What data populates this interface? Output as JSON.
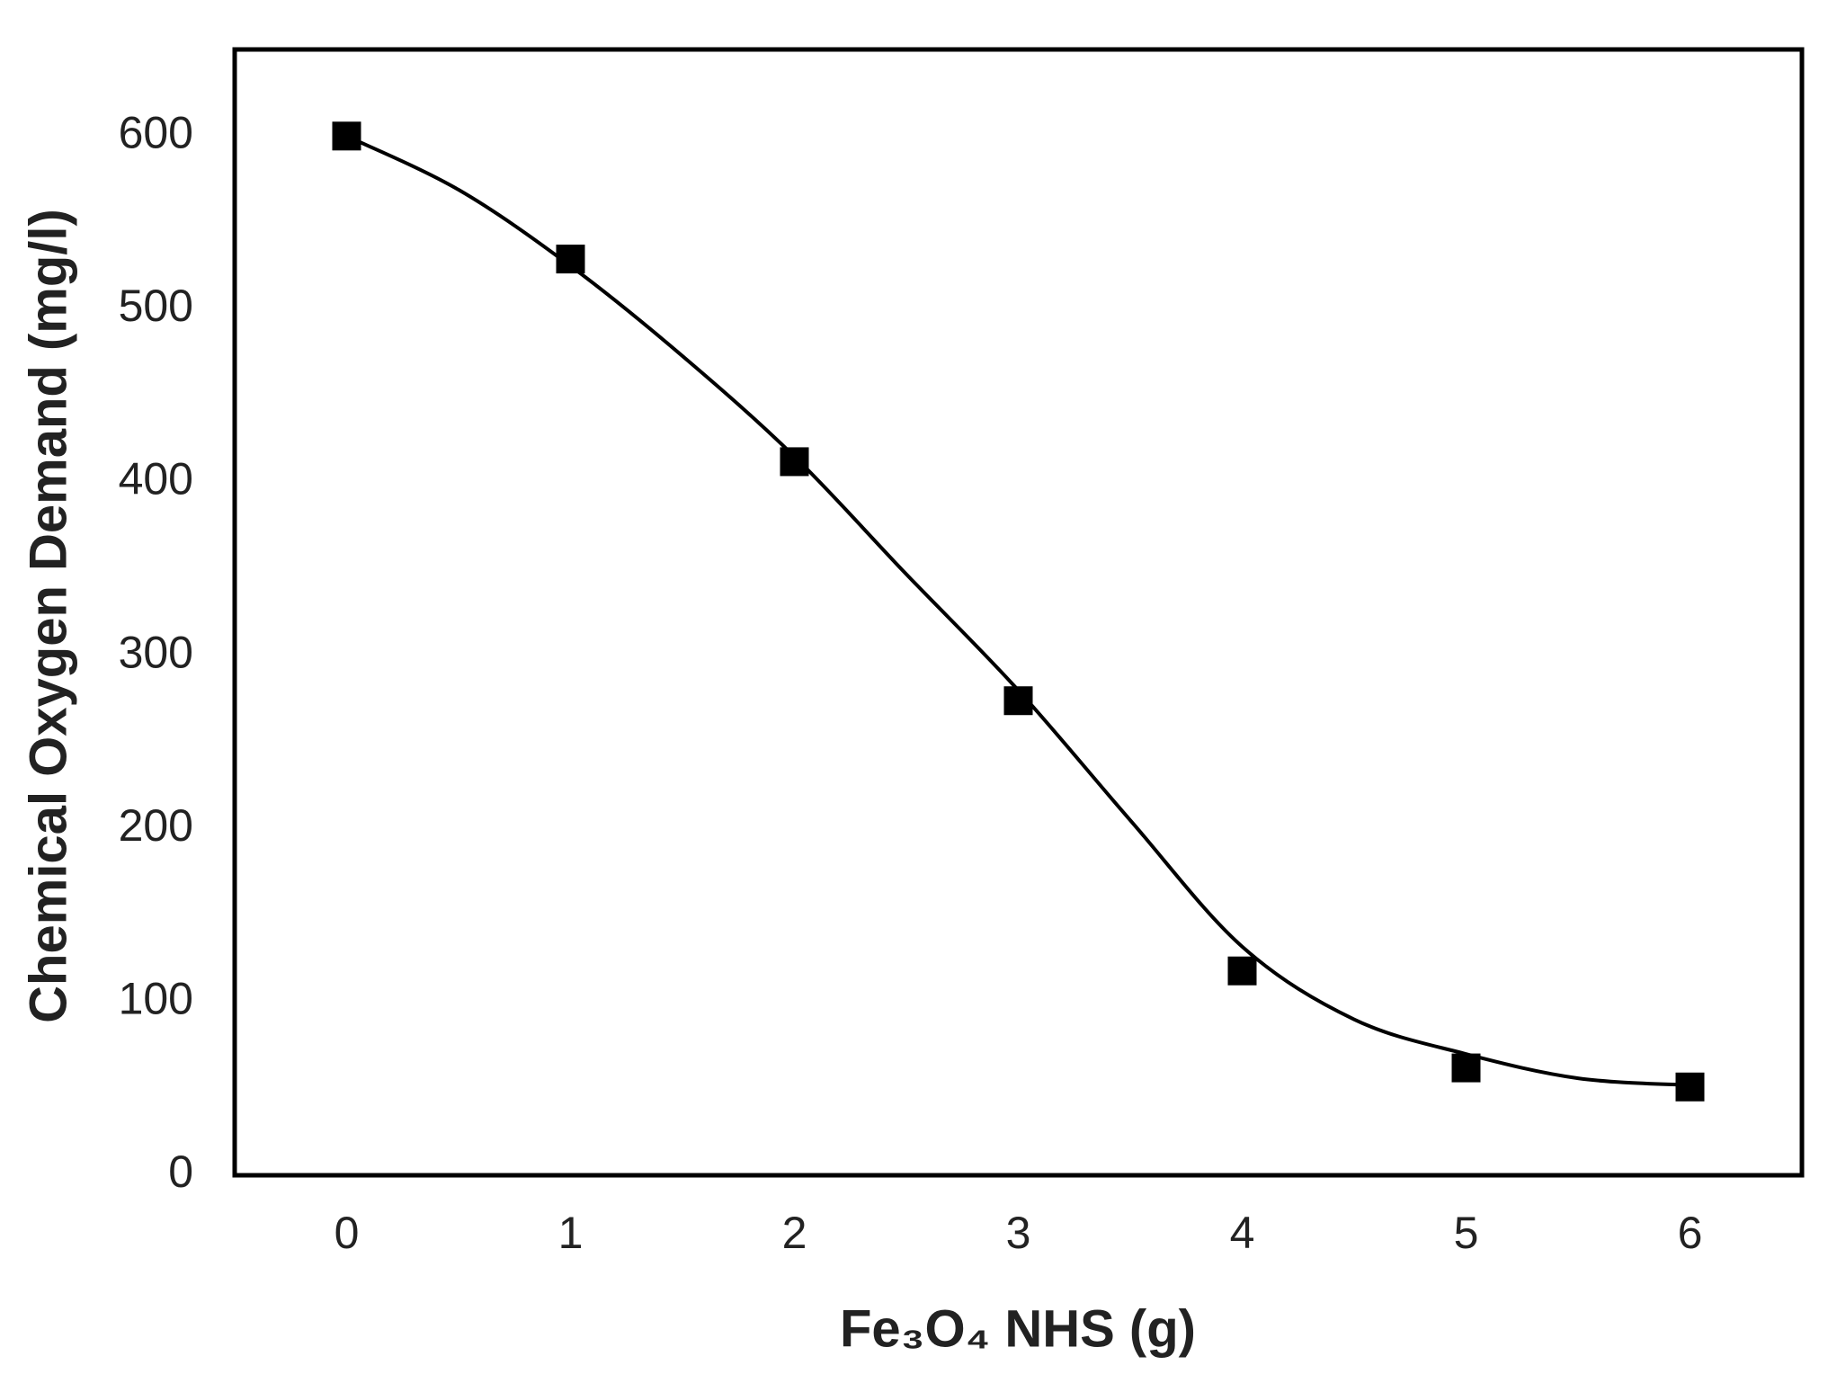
{
  "chart_data": {
    "type": "scatter",
    "xlabel": "Fe₃O₄ NHS (g)",
    "ylabel": "Chemical Oxygen Demand (mg/l)",
    "series": [
      {
        "x": [
          0,
          1,
          2,
          3,
          4,
          5,
          6
        ],
        "values": [
          600,
          529,
          412,
          274,
          118,
          62,
          51
        ],
        "color": "#000000",
        "marker": "square"
      },
      {
        "x": [
          0,
          0.5,
          1,
          1.5,
          2,
          2.5,
          3,
          3.5,
          4,
          4.5,
          5,
          5.5,
          6
        ],
        "values": [
          600,
          569,
          525,
          473,
          415,
          347,
          280,
          205,
          132,
          90,
          70,
          56,
          52
        ],
        "color": "#000000",
        "marker": "line"
      }
    ],
    "xlim": [
      -0.5,
      6.5
    ],
    "ylim": [
      0,
      650
    ],
    "xticks": [
      0,
      1,
      2,
      3,
      4,
      5,
      6
    ],
    "yticks": [
      0,
      100,
      200,
      300,
      400,
      500,
      600
    ],
    "grid": false
  }
}
